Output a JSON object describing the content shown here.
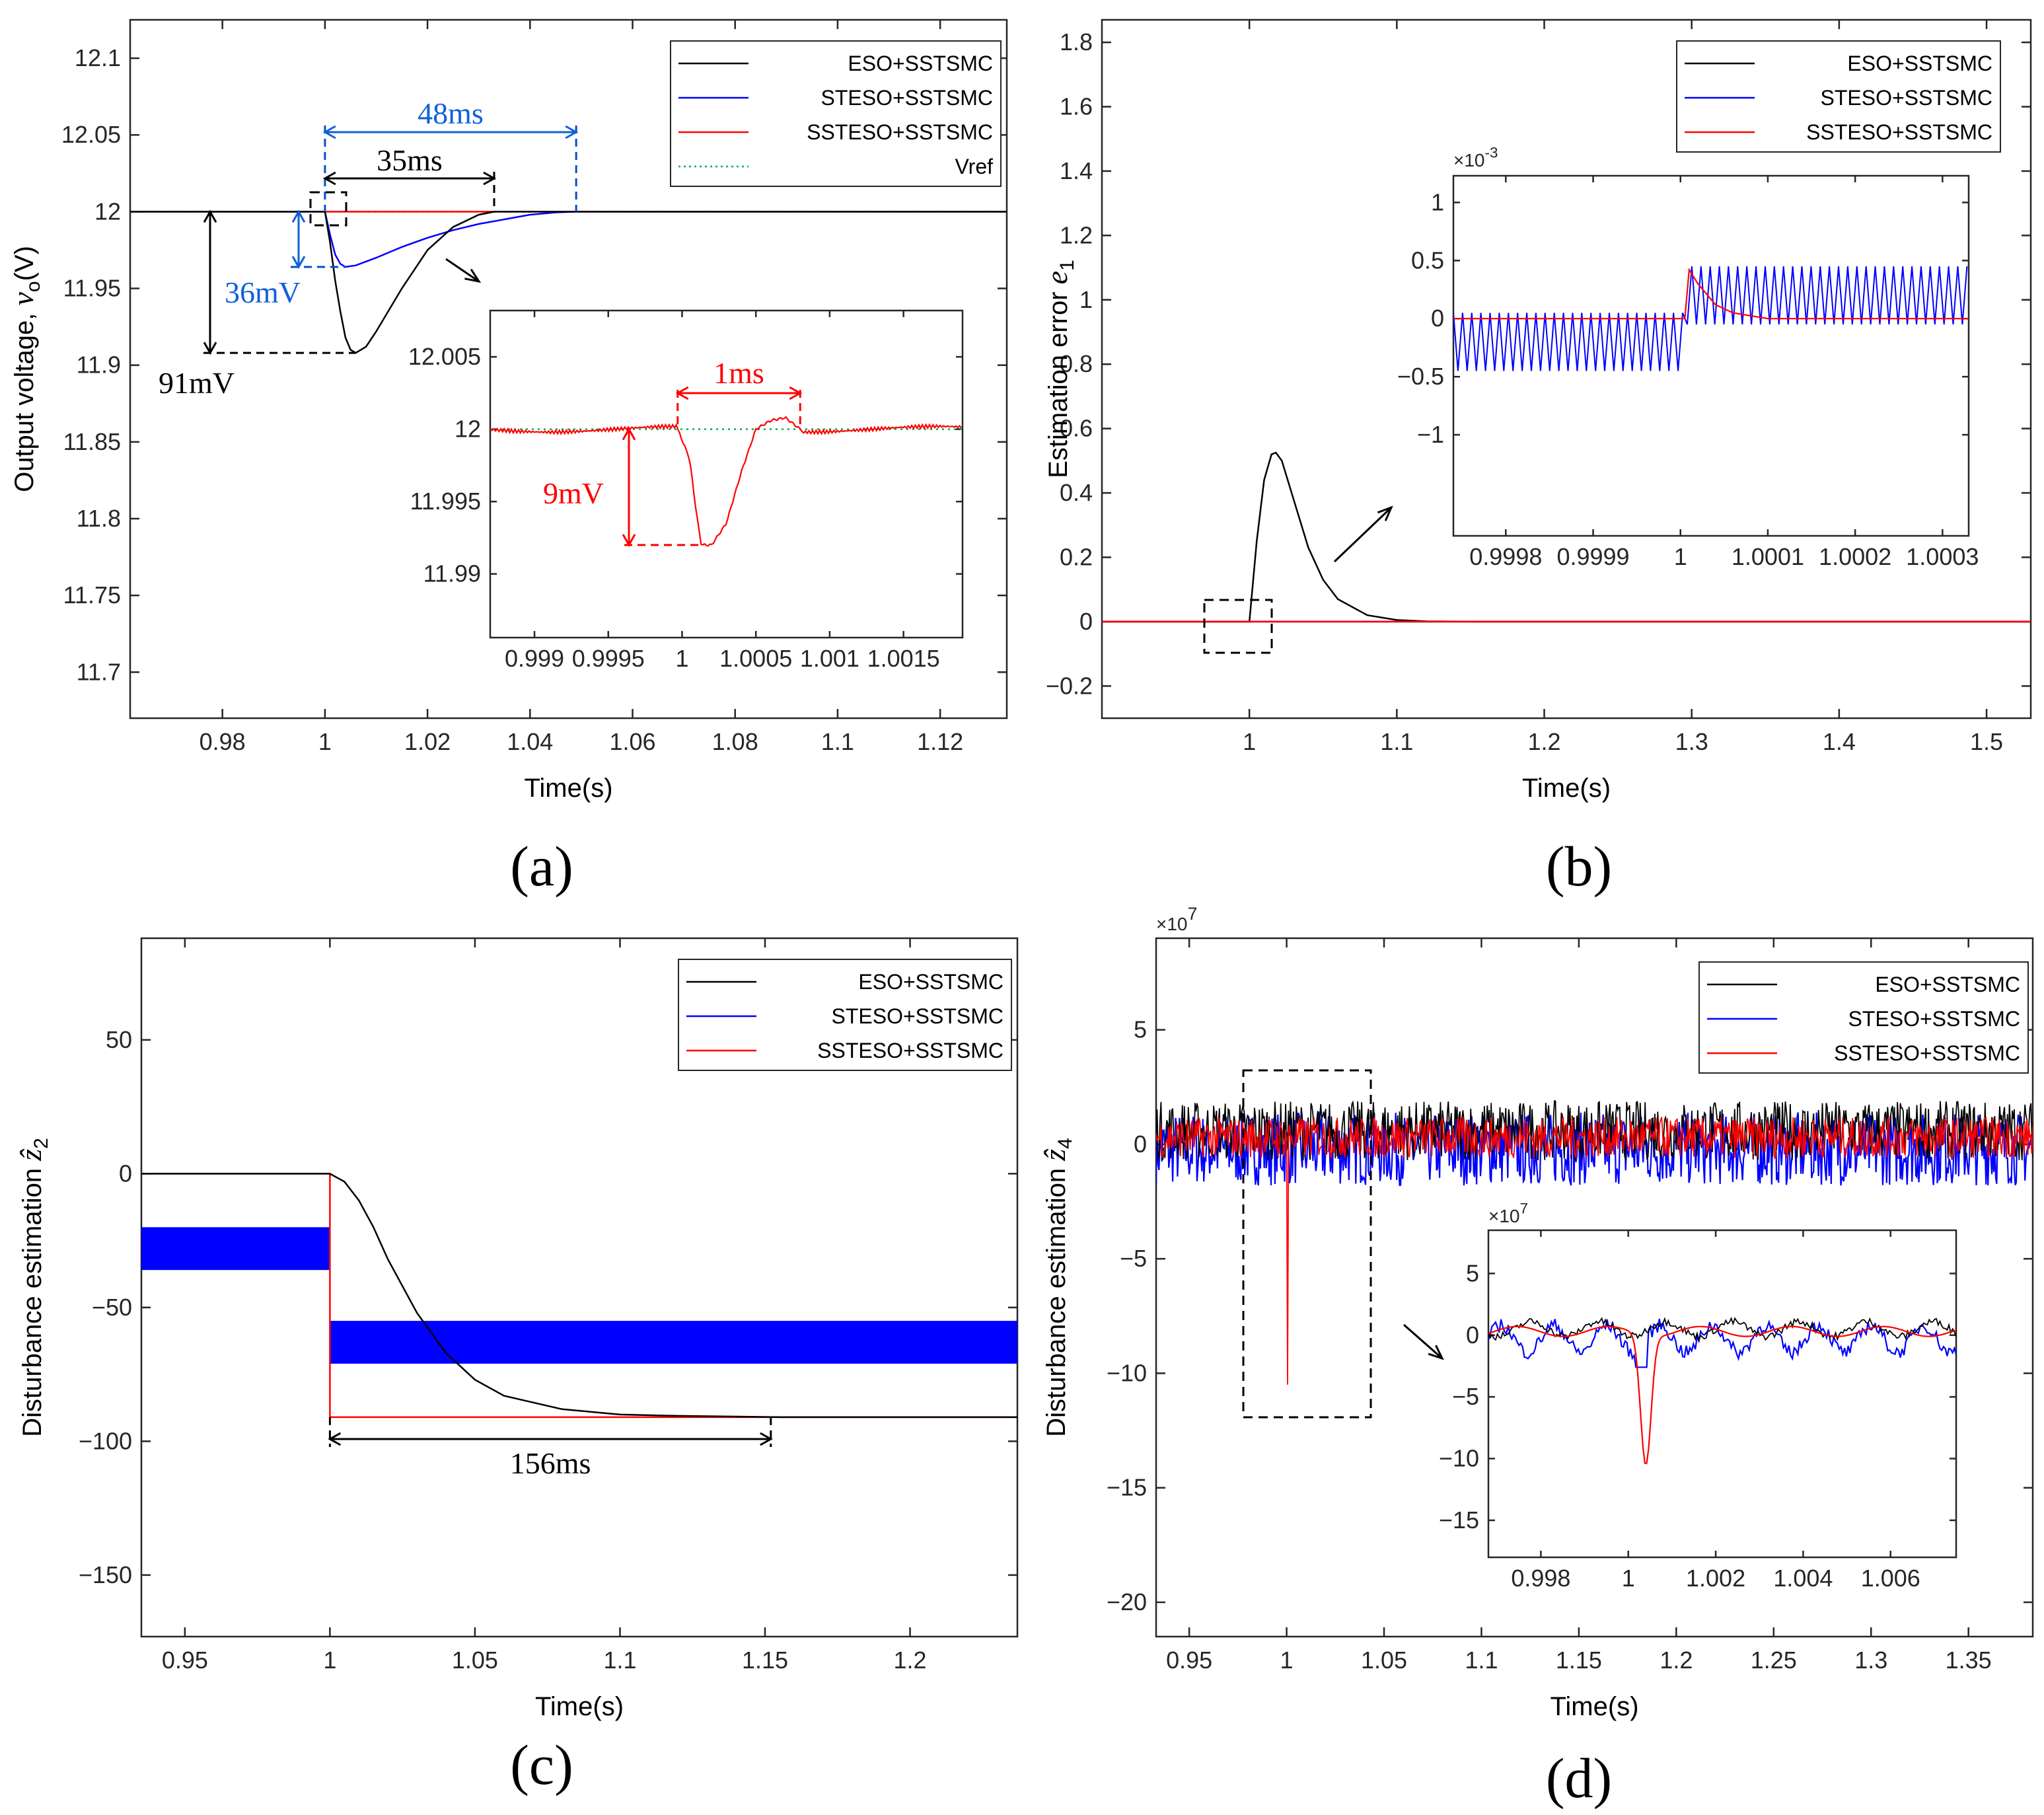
{
  "chart_data": [
    {
      "id": "a",
      "type": "line",
      "caption": "(a)",
      "xlabel": "Time(s)",
      "ylabel": "Output voltage, v_o(V)",
      "ylabel_parts": {
        "text": "Output voltage, ",
        "var": "v",
        "sub": "o",
        "unit": "(V)"
      },
      "xlim": [
        0.962,
        1.133
      ],
      "ylim": [
        11.67,
        12.125
      ],
      "xticks": [
        0.98,
        1,
        1.02,
        1.04,
        1.06,
        1.08,
        1.1,
        1.12
      ],
      "xtick_labels": [
        "0.98",
        "1",
        "1.02",
        "1.04",
        "1.06",
        "1.08",
        "1.1",
        "1.12"
      ],
      "yticks": [
        11.7,
        11.75,
        11.8,
        11.85,
        11.9,
        11.95,
        12,
        12.05,
        12.1
      ],
      "ytick_labels": [
        "11.7",
        "11.75",
        "11.8",
        "11.85",
        "11.9",
        "11.95",
        "12",
        "12.05",
        "12.1"
      ],
      "legend": [
        "ESO+SSTSMC",
        "STESO+SSTSMC",
        "SSTESO+SSTSMC",
        "Vref"
      ],
      "legend_location": "top-right",
      "series": [
        {
          "name": "ESO+SSTSMC",
          "color": "#000000",
          "x": [
            0.962,
            1.0,
            1.001,
            1.002,
            1.003,
            1.004,
            1.005,
            1.006,
            1.008,
            1.01,
            1.015,
            1.02,
            1.025,
            1.03,
            1.033,
            1.04,
            1.133
          ],
          "y": [
            12,
            12,
            11.98,
            11.955,
            11.935,
            11.918,
            11.91,
            11.908,
            11.912,
            11.922,
            11.95,
            11.975,
            11.99,
            11.998,
            12,
            12,
            12
          ]
        },
        {
          "name": "STESO+SSTSMC",
          "color": "#0000ff",
          "x": [
            0.962,
            1.0,
            1.001,
            1.002,
            1.003,
            1.004,
            1.006,
            1.01,
            1.015,
            1.02,
            1.025,
            1.03,
            1.035,
            1.04,
            1.045,
            1.049,
            1.133
          ],
          "y": [
            12,
            12,
            11.985,
            11.972,
            11.966,
            11.964,
            11.965,
            11.97,
            11.977,
            11.983,
            11.988,
            11.992,
            11.995,
            11.998,
            11.9995,
            12,
            12
          ]
        },
        {
          "name": "SSTESO+SSTSMC",
          "color": "#ff0000",
          "x": [
            0.962,
            1.133
          ],
          "y": [
            12,
            12
          ]
        },
        {
          "name": "Vref",
          "color": "#00b050",
          "style": "dotted",
          "x": [
            0.962,
            1.133
          ],
          "y": [
            12,
            12
          ]
        }
      ],
      "annotations": {
        "t1": "48ms",
        "t2": "35ms",
        "v1": "36mV",
        "v2": "91mV"
      },
      "inset": {
        "xlim": [
          0.9987,
          1.0019
        ],
        "ylim": [
          11.9856,
          12.0082
        ],
        "xticks": [
          0.999,
          0.9995,
          1,
          1.0005,
          1.001,
          1.0015
        ],
        "xtick_labels": [
          "0.999",
          "0.9995",
          "1",
          "1.0005",
          "1.001",
          "1.0015"
        ],
        "yticks": [
          11.99,
          11.995,
          12,
          12.005
        ],
        "ytick_labels": [
          "11.99",
          "11.995",
          "12",
          "12.005"
        ],
        "dip": {
          "x": [
            0.99997,
            1.00005,
            1.0001,
            1.00013,
            1.0002,
            1.0003,
            1.0004,
            1.0005,
            1.0006,
            1.0007,
            1.0008
          ],
          "y": [
            12,
            11.998,
            11.994,
            11.992,
            11.992,
            11.9935,
            11.997,
            12,
            12.0006,
            12.0008,
            12
          ]
        },
        "annotations": {
          "t": "1ms",
          "v": "9mV"
        }
      }
    },
    {
      "id": "b",
      "type": "line",
      "caption": "(b)",
      "xlabel": "Time(s)",
      "ylabel": "Estimation error e_1",
      "ylabel_parts": {
        "text": "Estimation error ",
        "var": "e",
        "sub": "1"
      },
      "xlim": [
        0.9,
        1.53
      ],
      "ylim": [
        -0.3,
        1.87
      ],
      "xticks": [
        1,
        1.1,
        1.2,
        1.3,
        1.4,
        1.5
      ],
      "xtick_labels": [
        "1",
        "1.1",
        "1.2",
        "1.3",
        "1.4",
        "1.5"
      ],
      "yticks": [
        -0.2,
        0,
        0.2,
        0.4,
        0.6,
        0.8,
        1,
        1.2,
        1.4,
        1.6,
        1.8
      ],
      "ytick_labels": [
        "−0.2",
        "0",
        "0.2",
        "0.4",
        "0.6",
        "0.8",
        "1",
        "1.2",
        "1.4",
        "1.6",
        "1.8"
      ],
      "legend": [
        "ESO+SSTSMC",
        "STESO+SSTSMC",
        "SSTESO+SSTSMC"
      ],
      "legend_location": "top-right",
      "series": [
        {
          "name": "ESO+SSTSMC",
          "color": "#000000",
          "x": [
            0.9,
            1.0,
            1.005,
            1.01,
            1.015,
            1.018,
            1.022,
            1.03,
            1.04,
            1.05,
            1.06,
            1.08,
            1.1,
            1.12,
            1.15,
            1.53
          ],
          "y": [
            0,
            0,
            0.25,
            0.44,
            0.52,
            0.525,
            0.5,
            0.38,
            0.23,
            0.13,
            0.07,
            0.02,
            0.005,
            0.001,
            0,
            0
          ]
        },
        {
          "name": "STESO+SSTSMC",
          "color": "#0000ff",
          "x": [
            0.9,
            1.53
          ],
          "y": [
            0,
            0
          ]
        },
        {
          "name": "SSTESO+SSTSMC",
          "color": "#ff0000",
          "x": [
            0.9,
            1.53
          ],
          "y": [
            0,
            0
          ]
        }
      ],
      "inset": {
        "multiplier": "×10^-3",
        "mult_base": "×10",
        "mult_exp": "-3",
        "xlim": [
          0.99974,
          1.00033
        ],
        "ylim": [
          -1.87,
          1.23
        ],
        "xticks": [
          0.9998,
          0.9999,
          1,
          1.0001,
          1.0002,
          1.0003
        ],
        "xtick_labels": [
          "0.9998",
          "0.9999",
          "1",
          "1.0001",
          "1.0002",
          "1.0003"
        ],
        "yticks": [
          -1,
          -0.5,
          0,
          0.5,
          1
        ],
        "ytick_labels": [
          "−1",
          "−0.5",
          "0",
          "0.5",
          "1"
        ],
        "blue": {
          "period": 1.05e-05,
          "low_before": -0.45,
          "high_before": 0.05,
          "low_after": -0.05,
          "high_after": 0.45,
          "step": 1.000005,
          "peak": 0.55
        },
        "red": {
          "x": [
            0.99974,
            1.000005,
            1.00001,
            1.00002,
            1.00004,
            1.00006,
            1.0001,
            1.00033
          ],
          "y": [
            0,
            0,
            0.42,
            0.3,
            0.12,
            0.05,
            0,
            0
          ]
        }
      }
    },
    {
      "id": "c",
      "type": "line",
      "caption": "(c)",
      "xlabel": "Time(s)",
      "ylabel": "Disturbance estimation ẑ_2",
      "ylabel_parts": {
        "text": "Disturbance estimation ",
        "var": "ẑ",
        "sub": "2"
      },
      "xlim": [
        0.935,
        1.237
      ],
      "ylim": [
        -173,
        88
      ],
      "xticks": [
        0.95,
        1,
        1.05,
        1.1,
        1.15,
        1.2
      ],
      "xtick_labels": [
        "0.95",
        "1",
        "1.05",
        "1.1",
        "1.15",
        "1.2"
      ],
      "yticks": [
        -150,
        -100,
        -50,
        0,
        50
      ],
      "ytick_labels": [
        "−150",
        "−100",
        "−50",
        "0",
        "50"
      ],
      "legend": [
        "ESO+SSTSMC",
        "STESO+SSTSMC",
        "SSTESO+SSTSMC"
      ],
      "legend_location": "top-right",
      "series": [
        {
          "name": "ESO+SSTSMC",
          "color": "#000000",
          "x": [
            0.935,
            1.0,
            1.005,
            1.01,
            1.015,
            1.02,
            1.03,
            1.04,
            1.05,
            1.06,
            1.08,
            1.1,
            1.12,
            1.156,
            1.237
          ],
          "y": [
            0,
            0,
            -3,
            -10,
            -20,
            -32,
            -52,
            -67,
            -77,
            -83,
            -88,
            -90,
            -90.5,
            -91,
            -91
          ]
        },
        {
          "name": "STESO+SSTSMC",
          "color": "#0000ff",
          "band": true,
          "x": [
            0.935,
            1.0,
            1.0,
            1.237
          ],
          "ylow": [
            -36,
            -36,
            -71,
            -71
          ],
          "yhigh": [
            -20,
            -20,
            -55,
            -55
          ]
        },
        {
          "name": "SSTESO+SSTSMC",
          "color": "#ff0000",
          "x": [
            0.935,
            1.0,
            1.0,
            1.237
          ],
          "y": [
            0,
            0,
            -91,
            -91
          ]
        }
      ],
      "annotations": {
        "t": "156ms"
      }
    },
    {
      "id": "d",
      "type": "line",
      "caption": "(d)",
      "xlabel": "Time(s)",
      "ylabel": "Disturbance estimation ẑ_4",
      "ylabel_parts": {
        "text": "Disturbance estimation ",
        "var": "ẑ",
        "sub": "4"
      },
      "multiplier": "×10^7",
      "mult_base": "×10",
      "mult_exp": "7",
      "xlim": [
        0.933,
        1.383
      ],
      "ylim": [
        -21.5,
        9
      ],
      "xticks": [
        0.95,
        1,
        1.05,
        1.1,
        1.15,
        1.2,
        1.25,
        1.3,
        1.35
      ],
      "xtick_labels": [
        "0.95",
        "1",
        "1.05",
        "1.1",
        "1.15",
        "1.2",
        "1.25",
        "1.3",
        "1.35"
      ],
      "yticks": [
        -20,
        -15,
        -10,
        -5,
        0,
        5
      ],
      "ytick_labels": [
        "−20",
        "−15",
        "−10",
        "−5",
        "0",
        "5"
      ],
      "legend": [
        "ESO+SSTSMC",
        "STESO+SSTSMC",
        "SSTESO+SSTSMC"
      ],
      "legend_location": "top-right",
      "series": [
        {
          "name": "ESO+SSTSMC",
          "color": "#000000",
          "noise": {
            "mean": 0.6,
            "amp": 1.3
          }
        },
        {
          "name": "STESO+SSTSMC",
          "color": "#0000ff",
          "noise": {
            "mean": -0.2,
            "amp": 1.6
          }
        },
        {
          "name": "SSTESO+SSTSMC",
          "color": "#ff0000",
          "noise": {
            "mean": 0.3,
            "amp": 0.9
          },
          "spike": {
            "x": 1.0004,
            "y": -10.5
          }
        }
      ],
      "inset": {
        "multiplier": "×10^7",
        "mult_base": "×10",
        "mult_exp": "7",
        "xlim": [
          0.9968,
          1.0075
        ],
        "ylim": [
          -18,
          8.5
        ],
        "xticks": [
          0.998,
          1,
          1.002,
          1.004,
          1.006
        ],
        "xtick_labels": [
          "0.998",
          "1",
          "1.002",
          "1.004",
          "1.006"
        ],
        "yticks": [
          -15,
          -10,
          -5,
          0,
          5
        ],
        "ytick_labels": [
          "−15",
          "−10",
          "−5",
          "0",
          "5"
        ],
        "spike": {
          "x": 1.0004,
          "y": -10.5
        }
      }
    }
  ]
}
